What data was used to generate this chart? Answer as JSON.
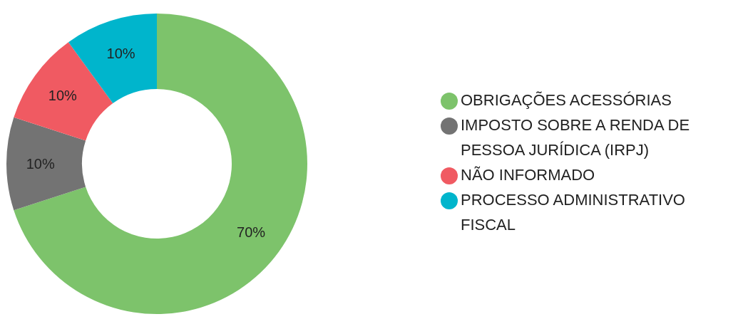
{
  "chart_data": {
    "type": "donut",
    "categories": [
      "OBRIGAÇÕES ACESSÓRIAS",
      "IMPOSTO SOBRE A RENDA DE PESSOA JURÍDICA (IRPJ)",
      "NÃO INFORMADO",
      "PROCESSO ADMINISTRATIVO FISCAL"
    ],
    "values": [
      70,
      10,
      10,
      10
    ],
    "colors": [
      "#7dc36b",
      "#737373",
      "#f05a62",
      "#00b5cc"
    ],
    "value_labels": [
      "70%",
      "10%",
      "10%",
      "10%"
    ],
    "legend": "right"
  }
}
